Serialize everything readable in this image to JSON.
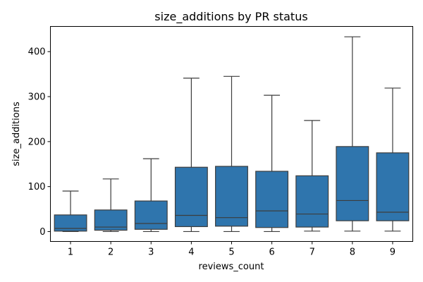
{
  "chart_data": {
    "type": "box",
    "title": "size_additions by PR status",
    "xlabel": "reviews_count",
    "ylabel": "size_additions",
    "categories": [
      "1",
      "2",
      "3",
      "4",
      "5",
      "6",
      "7",
      "8",
      "9"
    ],
    "ylim": [
      -22,
      456
    ],
    "yticks": [
      0,
      100,
      200,
      300,
      400
    ],
    "grid": false,
    "legend": "none",
    "box_color": "#2f75ad",
    "line_color": "#3d3d3d",
    "boxes": [
      {
        "whisker_low": 0,
        "q1": 1,
        "median": 7,
        "q3": 37,
        "whisker_high": 90
      },
      {
        "whisker_low": 0,
        "q1": 3,
        "median": 10,
        "q3": 48,
        "whisker_high": 117
      },
      {
        "whisker_low": 0,
        "q1": 5,
        "median": 18,
        "q3": 68,
        "whisker_high": 162
      },
      {
        "whisker_low": 0,
        "q1": 11,
        "median": 36,
        "q3": 143,
        "whisker_high": 341
      },
      {
        "whisker_low": 0,
        "q1": 12,
        "median": 31,
        "q3": 145,
        "whisker_high": 345
      },
      {
        "whisker_low": 0,
        "q1": 9,
        "median": 46,
        "q3": 134,
        "whisker_high": 303
      },
      {
        "whisker_low": 1,
        "q1": 10,
        "median": 39,
        "q3": 124,
        "whisker_high": 247
      },
      {
        "whisker_low": 1,
        "q1": 24,
        "median": 69,
        "q3": 189,
        "whisker_high": 433
      },
      {
        "whisker_low": 1,
        "q1": 24,
        "median": 43,
        "q3": 175,
        "whisker_high": 319
      }
    ]
  }
}
